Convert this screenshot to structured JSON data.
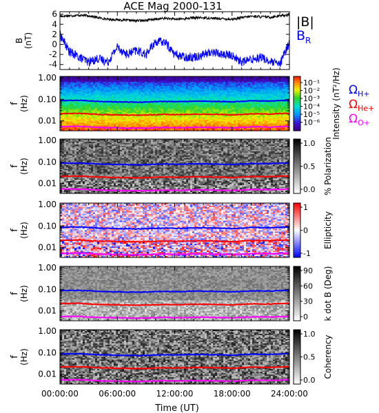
{
  "title": "ACE Mag 2000-131",
  "xlabel": "Time (UT)",
  "x_ticks": [
    "00:00:00",
    "06:00:00",
    "12:00:00",
    "18:00:00",
    "24:00:00"
  ],
  "colors": {
    "B_total": "#000000",
    "B_R": "#0000ff",
    "H_plus": "#0000ff",
    "He_plus": "#ff0000",
    "O_plus": "#ff00ff"
  },
  "chart_data": [
    {
      "type": "line",
      "panel": "field",
      "ylabel": "B (nT)",
      "y_ticks": [
        "6",
        "4",
        "2",
        "0",
        "-2",
        "-4"
      ],
      "ylim": [
        -5,
        6.5
      ],
      "xlim": [
        0,
        24
      ],
      "series": [
        {
          "name": "|B|",
          "x": [
            0,
            1,
            2,
            3,
            4,
            5,
            6,
            7,
            8,
            9,
            10,
            11,
            12,
            13,
            14,
            15,
            16,
            17,
            18,
            19,
            20,
            21,
            22,
            23,
            24
          ],
          "values": [
            5.6,
            5.7,
            5.8,
            5.7,
            5.3,
            5.0,
            4.9,
            4.8,
            4.7,
            4.8,
            5.0,
            5.2,
            5.0,
            5.1,
            5.3,
            5.3,
            5.2,
            5.1,
            5.0,
            5.3,
            5.6,
            5.5,
            5.4,
            5.7,
            5.9
          ]
        },
        {
          "name": "B_R",
          "x": [
            0,
            1,
            2,
            3,
            4,
            5,
            6,
            7,
            8,
            9,
            10,
            11,
            12,
            13,
            14,
            15,
            16,
            17,
            18,
            19,
            20,
            21,
            22,
            23,
            24
          ],
          "values": [
            2.0,
            -1.5,
            -2.5,
            -3.5,
            -2.8,
            -3.5,
            -0.5,
            -2.0,
            -1.2,
            -2.0,
            0.5,
            0.5,
            -2.0,
            -2.5,
            -2.5,
            -2.0,
            -1.5,
            -2.0,
            -2.2,
            -3.5,
            -3.0,
            -2.5,
            -3.5,
            -4.0,
            0.5
          ]
        }
      ]
    },
    {
      "type": "heatmap",
      "panel": "intensity",
      "ylabel": "f (Hz)",
      "y_ticks": [
        "1.00",
        "0.10",
        "0.01"
      ],
      "colorbar_label": "Intensity (nT²/Hz)",
      "colorbar_ticks": [
        "10⁻¹",
        "10⁻²",
        "10⁻³",
        "10⁻⁴",
        "10⁻⁵",
        "10⁻⁶"
      ],
      "legend": [
        "Ω_H+",
        "Ω_He+",
        "Ω_O+"
      ]
    },
    {
      "type": "heatmap",
      "panel": "polarization",
      "ylabel": "f (Hz)",
      "y_ticks": [
        "1.00",
        "0.10",
        "0.01"
      ],
      "colorbar_label": "% Polarization",
      "colorbar_ticks": [
        "1.0",
        "0.5",
        "0.0"
      ]
    },
    {
      "type": "heatmap",
      "panel": "ellipticity",
      "ylabel": "f (Hz)",
      "y_ticks": [
        "1.00",
        "0.10",
        "0.01"
      ],
      "colorbar_label": "Ellipticity",
      "colorbar_ticks": [
        "1",
        "0",
        "-1"
      ]
    },
    {
      "type": "heatmap",
      "panel": "kdotb",
      "ylabel": "f (Hz)",
      "y_ticks": [
        "1.00",
        "0.10",
        "0.01"
      ],
      "colorbar_label": "k dot B (Deg)",
      "colorbar_ticks": [
        "90",
        "60",
        "30",
        "0"
      ]
    },
    {
      "type": "heatmap",
      "panel": "coherency",
      "ylabel": "f (Hz)",
      "y_ticks": [
        "1.00",
        "0.10",
        "0.01"
      ],
      "colorbar_label": "Coherency",
      "colorbar_ticks": [
        "1.0",
        "0.5",
        "0.0"
      ]
    }
  ],
  "gyrofrequencies": {
    "x": [
      0,
      1,
      2,
      3,
      4,
      5,
      6,
      7,
      8,
      9,
      10,
      11,
      12,
      13,
      14,
      15,
      16,
      17,
      18,
      19,
      20,
      21,
      22,
      23,
      24
    ],
    "H_plus_hz": [
      0.088,
      0.088,
      0.09,
      0.085,
      0.08,
      0.078,
      0.076,
      0.075,
      0.074,
      0.075,
      0.078,
      0.08,
      0.078,
      0.079,
      0.082,
      0.082,
      0.08,
      0.079,
      0.076,
      0.08,
      0.085,
      0.084,
      0.083,
      0.087,
      0.09
    ],
    "He_plus_hz": [
      0.022,
      0.022,
      0.0225,
      0.021,
      0.02,
      0.0195,
      0.019,
      0.0188,
      0.0185,
      0.0188,
      0.0195,
      0.02,
      0.0195,
      0.0198,
      0.0205,
      0.0205,
      0.02,
      0.0198,
      0.019,
      0.02,
      0.0213,
      0.021,
      0.0208,
      0.0218,
      0.0225
    ],
    "O_plus_hz": [
      0.0055,
      0.0055,
      0.0056,
      0.0053,
      0.005,
      0.0049,
      0.0048,
      0.0047,
      0.0046,
      0.0047,
      0.0049,
      0.005,
      0.0049,
      0.0049,
      0.0051,
      0.0051,
      0.005,
      0.0049,
      0.0048,
      0.005,
      0.0053,
      0.0053,
      0.0052,
      0.0054,
      0.0056
    ]
  },
  "labels": {
    "B_total": "|B|",
    "B_R_main": "B",
    "B_R_sub": "R",
    "omega": "Ω",
    "H_sub": "H+",
    "He_sub": "He+",
    "O_sub": "O+",
    "f_main": "f",
    "f_unit": "(Hz)",
    "B_main": "B",
    "B_unit": "(nT)"
  }
}
